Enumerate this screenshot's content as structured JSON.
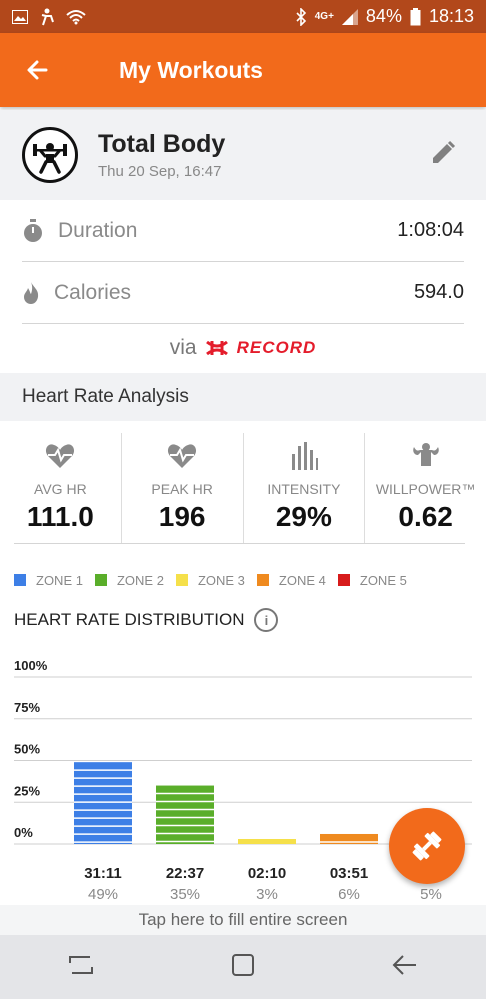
{
  "status_bar": {
    "network": "4G+",
    "battery": "84%",
    "time": "18:13"
  },
  "app_bar": {
    "title": "My Workouts"
  },
  "workout": {
    "name": "Total Body",
    "date": "Thu 20 Sep, 16:47"
  },
  "stats": [
    {
      "label": "Duration",
      "value": "1:08:04",
      "icon": "stopwatch-icon"
    },
    {
      "label": "Calories",
      "value": "594.0",
      "icon": "flame-icon"
    }
  ],
  "via": {
    "text": "via",
    "brand": "RECORD"
  },
  "section": {
    "title": "Heart Rate Analysis"
  },
  "metrics": [
    {
      "label": "AVG HR",
      "value": "111.0",
      "icon": "heart-rate-icon"
    },
    {
      "label": "PEAK HR",
      "value": "196",
      "icon": "heart-rate-icon"
    },
    {
      "label": "INTENSITY",
      "value": "29%",
      "icon": "intensity-bars-icon"
    },
    {
      "label": "WILLPOWER™",
      "value": "0.62",
      "icon": "muscle-icon"
    }
  ],
  "legend": [
    {
      "label": "ZONE 1",
      "color": "#3d7fe6"
    },
    {
      "label": "ZONE 2",
      "color": "#5aae2a"
    },
    {
      "label": "ZONE 3",
      "color": "#f5e04a"
    },
    {
      "label": "ZONE 4",
      "color": "#ef8a1f"
    },
    {
      "label": "ZONE 5",
      "color": "#d71b1b"
    }
  ],
  "chart_title": "HEART RATE DISTRIBUTION",
  "chart_data": {
    "type": "bar",
    "title": "HEART RATE DISTRIBUTION",
    "categories": [
      "ZONE 1",
      "ZONE 2",
      "ZONE 3",
      "ZONE 4",
      "ZONE 5"
    ],
    "values": [
      49,
      35,
      3,
      6,
      5
    ],
    "times": [
      "31:11",
      "22:37",
      "02:10",
      "03:51",
      ""
    ],
    "percent_labels": [
      "49%",
      "35%",
      "3%",
      "6%",
      "5%"
    ],
    "colors": [
      "#3d7fe6",
      "#5aae2a",
      "#f5e04a",
      "#ef8a1f",
      "#d71b1b"
    ],
    "y_ticks": [
      "100%",
      "75%",
      "50%",
      "25%",
      "0%"
    ],
    "ylim": [
      0,
      100
    ],
    "grid": true
  },
  "tap_bar": "Tap here to fill entire screen"
}
